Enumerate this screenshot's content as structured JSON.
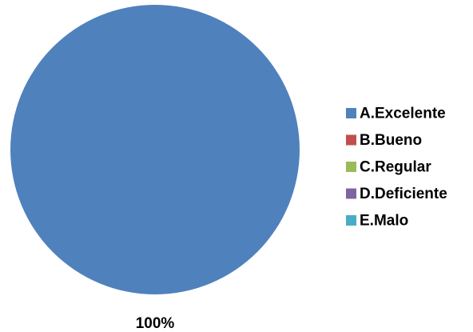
{
  "chart_data": {
    "type": "pie",
    "title": "",
    "categories": [
      "A.Excelente",
      "B.Bueno",
      "C.Regular",
      "D.Deficiente",
      "E.Malo"
    ],
    "values": [
      100,
      0,
      0,
      0,
      0
    ],
    "colors": [
      "#4f81bd",
      "#c0504d",
      "#9bbb59",
      "#8064a2",
      "#4bacc6"
    ],
    "data_labels": [
      "100%"
    ],
    "legend_position": "right",
    "grid": false
  }
}
